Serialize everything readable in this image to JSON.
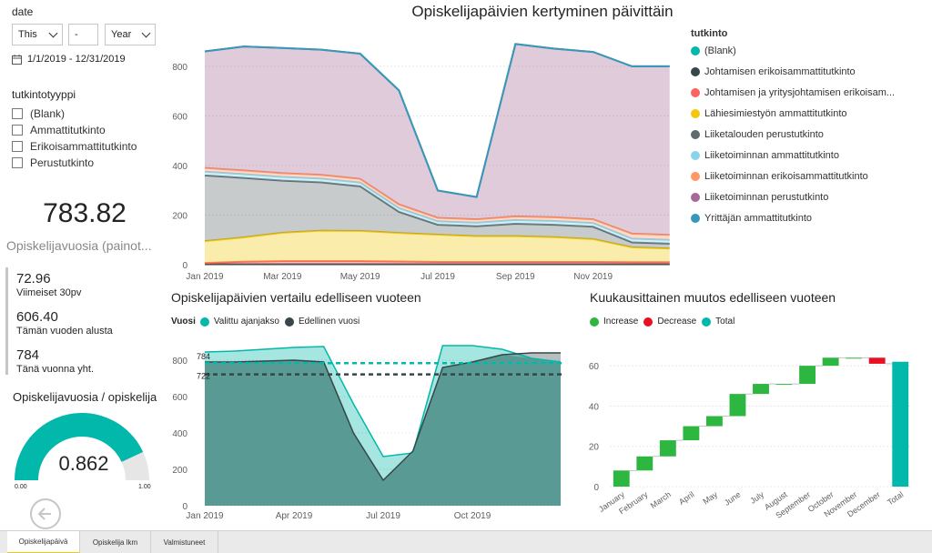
{
  "filters": {
    "date_label": "date",
    "relative_option": "This",
    "relative_count": "-",
    "relative_unit": "Year",
    "date_range": "1/1/2019 - 12/31/2019",
    "degree_type_label": "tutkintotyyppi",
    "degree_types": [
      "(Blank)",
      "Ammattitutkinto",
      "Erikoisammattitutkinto",
      "Perustutkinto"
    ]
  },
  "kpi": {
    "big_value": "783.82",
    "big_label": "Opiskelijavuosia (painot...",
    "items": [
      {
        "value": "72.96",
        "label": "Viimeiset 30pv"
      },
      {
        "value": "606.40",
        "label": "Tämän vuoden alusta"
      },
      {
        "value": "784",
        "label": "Tänä vuonna yht."
      }
    ]
  },
  "gauge": {
    "title": "Opiskelijavuosia / opiskelija",
    "value": "0.862",
    "min": "0.00",
    "max": "1.00",
    "fraction": 0.862,
    "fill_color": "#01B8AA",
    "track_color": "#E6E6E6"
  },
  "chart_titles": {
    "top": "Opiskelijapäivien kertyminen päivittäin",
    "bottom_left": "Opiskelijapäivien vertailu edelliseen vuoteen",
    "bottom_right": "Kuukausittainen muutos edelliseen vuoteen"
  },
  "top_legend": {
    "title": "tutkinto",
    "items": [
      {
        "label": "(Blank)",
        "color": "#01B8AA"
      },
      {
        "label": "Johtamisen erikoisammattitutkinto",
        "color": "#374649"
      },
      {
        "label": "Johtamisen ja yritysjohtamisen erikoisam...",
        "color": "#FD625E"
      },
      {
        "label": "Lähiesimiestyön ammattitutkinto",
        "color": "#F2C80F"
      },
      {
        "label": "Liiketalouden perustutkinto",
        "color": "#5F6B6D"
      },
      {
        "label": "Liiketoiminnan ammattitutkinto",
        "color": "#8AD4EB"
      },
      {
        "label": "Liiketoiminnan erikoisammattitutkinto",
        "color": "#FE9666"
      },
      {
        "label": "Liiketoiminnan perustutkinto",
        "color": "#A66999"
      },
      {
        "label": "Yrittäjän ammattitutkinto",
        "color": "#3599B8"
      }
    ]
  },
  "compare_legend": {
    "title": "Vuosi",
    "items": [
      {
        "label": "Valittu ajanjakso",
        "color": "#01B8AA"
      },
      {
        "label": "Edellinen vuosi",
        "color": "#374649"
      }
    ]
  },
  "waterfall_legend": {
    "items": [
      {
        "label": "Increase",
        "color": "#2DB640"
      },
      {
        "label": "Decrease",
        "color": "#E81123"
      },
      {
        "label": "Total",
        "color": "#01B8AA"
      }
    ]
  },
  "tabs": [
    {
      "label": "Opiskelijapäivä",
      "active": true
    },
    {
      "label": "Opiskelija lkm",
      "active": false
    },
    {
      "label": "Valmistuneet",
      "active": false
    }
  ],
  "chart_data": [
    {
      "type": "area",
      "title": "Opiskelijapäivien kertyminen päivittäin",
      "stacked": true,
      "ylim": [
        0,
        950
      ],
      "yticks": [
        0,
        200,
        400,
        600,
        800
      ],
      "x_start": "2019-01-01",
      "x_end": "2019-12-31",
      "xticks": [
        "Jan 2019",
        "Mar 2019",
        "May 2019",
        "Jul 2019",
        "Sep 2019",
        "Nov 2019"
      ],
      "x_months": [
        1,
        2,
        3,
        4,
        5,
        6,
        7,
        8,
        9,
        10,
        11,
        12,
        12.97
      ],
      "series": [
        {
          "name": "(Blank)",
          "values": [
            2,
            2,
            2,
            2,
            2,
            2,
            2,
            2,
            2,
            2,
            2,
            2,
            2
          ]
        },
        {
          "name": "Johtamisen erikoisammattitutkinto",
          "values": [
            0,
            0,
            0,
            0,
            0,
            0,
            0,
            0,
            0,
            0,
            0,
            0,
            0
          ]
        },
        {
          "name": "Johtamisen ja yritysjohtamisen erikoisam...",
          "values": [
            5,
            10,
            12,
            12,
            12,
            11,
            9,
            9,
            9,
            9,
            9,
            8,
            8
          ]
        },
        {
          "name": "Lähiesimiestyön ammattitutkinto",
          "values": [
            88,
            98,
            115,
            123,
            122,
            115,
            110,
            104,
            104,
            100,
            92,
            60,
            55
          ]
        },
        {
          "name": "Liiketalouden perustutkinto",
          "values": [
            265,
            240,
            210,
            195,
            180,
            85,
            40,
            40,
            50,
            50,
            50,
            20,
            20
          ]
        },
        {
          "name": "Liiketoiminnan ammattitutkinto",
          "values": [
            15,
            15,
            15,
            15,
            15,
            15,
            14,
            14,
            15,
            15,
            15,
            15,
            15
          ]
        },
        {
          "name": "Liiketoiminnan erikoisammattitutkinto",
          "values": [
            15,
            15,
            15,
            15,
            15,
            15,
            14,
            14,
            15,
            15,
            15,
            20,
            20
          ]
        },
        {
          "name": "Liiketoiminnan perustutkinto",
          "values": [
            470,
            500,
            505,
            505,
            505,
            460,
            110,
            90,
            695,
            680,
            675,
            675,
            680
          ]
        },
        {
          "name": "Yrittäjän ammattitutkinto",
          "values": [
            0,
            0,
            0,
            0,
            0,
            0,
            0,
            0,
            0,
            0,
            0,
            0,
            0
          ]
        }
      ]
    },
    {
      "type": "area",
      "title": "Opiskelijapäivien vertailu edelliseen vuoteen",
      "ylim": [
        0,
        900
      ],
      "yticks": [
        0,
        200,
        400,
        600,
        800
      ],
      "xticks": [
        "Jan 2019",
        "Apr 2019",
        "Jul 2019",
        "Oct 2019"
      ],
      "reference_lines": [
        {
          "label": "784",
          "value": 784,
          "color": "#01B8AA"
        },
        {
          "label": "722",
          "value": 722,
          "color": "#374649"
        }
      ],
      "x_months": [
        1,
        2,
        3,
        4,
        5,
        6,
        7,
        8,
        9,
        10,
        11,
        12,
        12.97
      ],
      "series": [
        {
          "name": "Valittu ajanjakso",
          "values": [
            845,
            850,
            860,
            870,
            875,
            560,
            270,
            290,
            880,
            880,
            860,
            810,
            790
          ]
        },
        {
          "name": "Edellinen vuosi",
          "values": [
            790,
            790,
            795,
            800,
            790,
            400,
            140,
            300,
            760,
            790,
            830,
            840,
            840
          ]
        }
      ]
    },
    {
      "type": "bar",
      "subtype": "waterfall",
      "title": "Kuukausittainen muutos edelliseen vuoteen",
      "ylim": [
        0,
        70
      ],
      "yticks": [
        0,
        20,
        40,
        60
      ],
      "categories": [
        "January",
        "February",
        "March",
        "April",
        "May",
        "June",
        "July",
        "August",
        "September",
        "October",
        "November",
        "December",
        "Total"
      ],
      "values": [
        8,
        7,
        8,
        7,
        5,
        11,
        5,
        0,
        9,
        4,
        0,
        -3,
        62
      ]
    }
  ]
}
